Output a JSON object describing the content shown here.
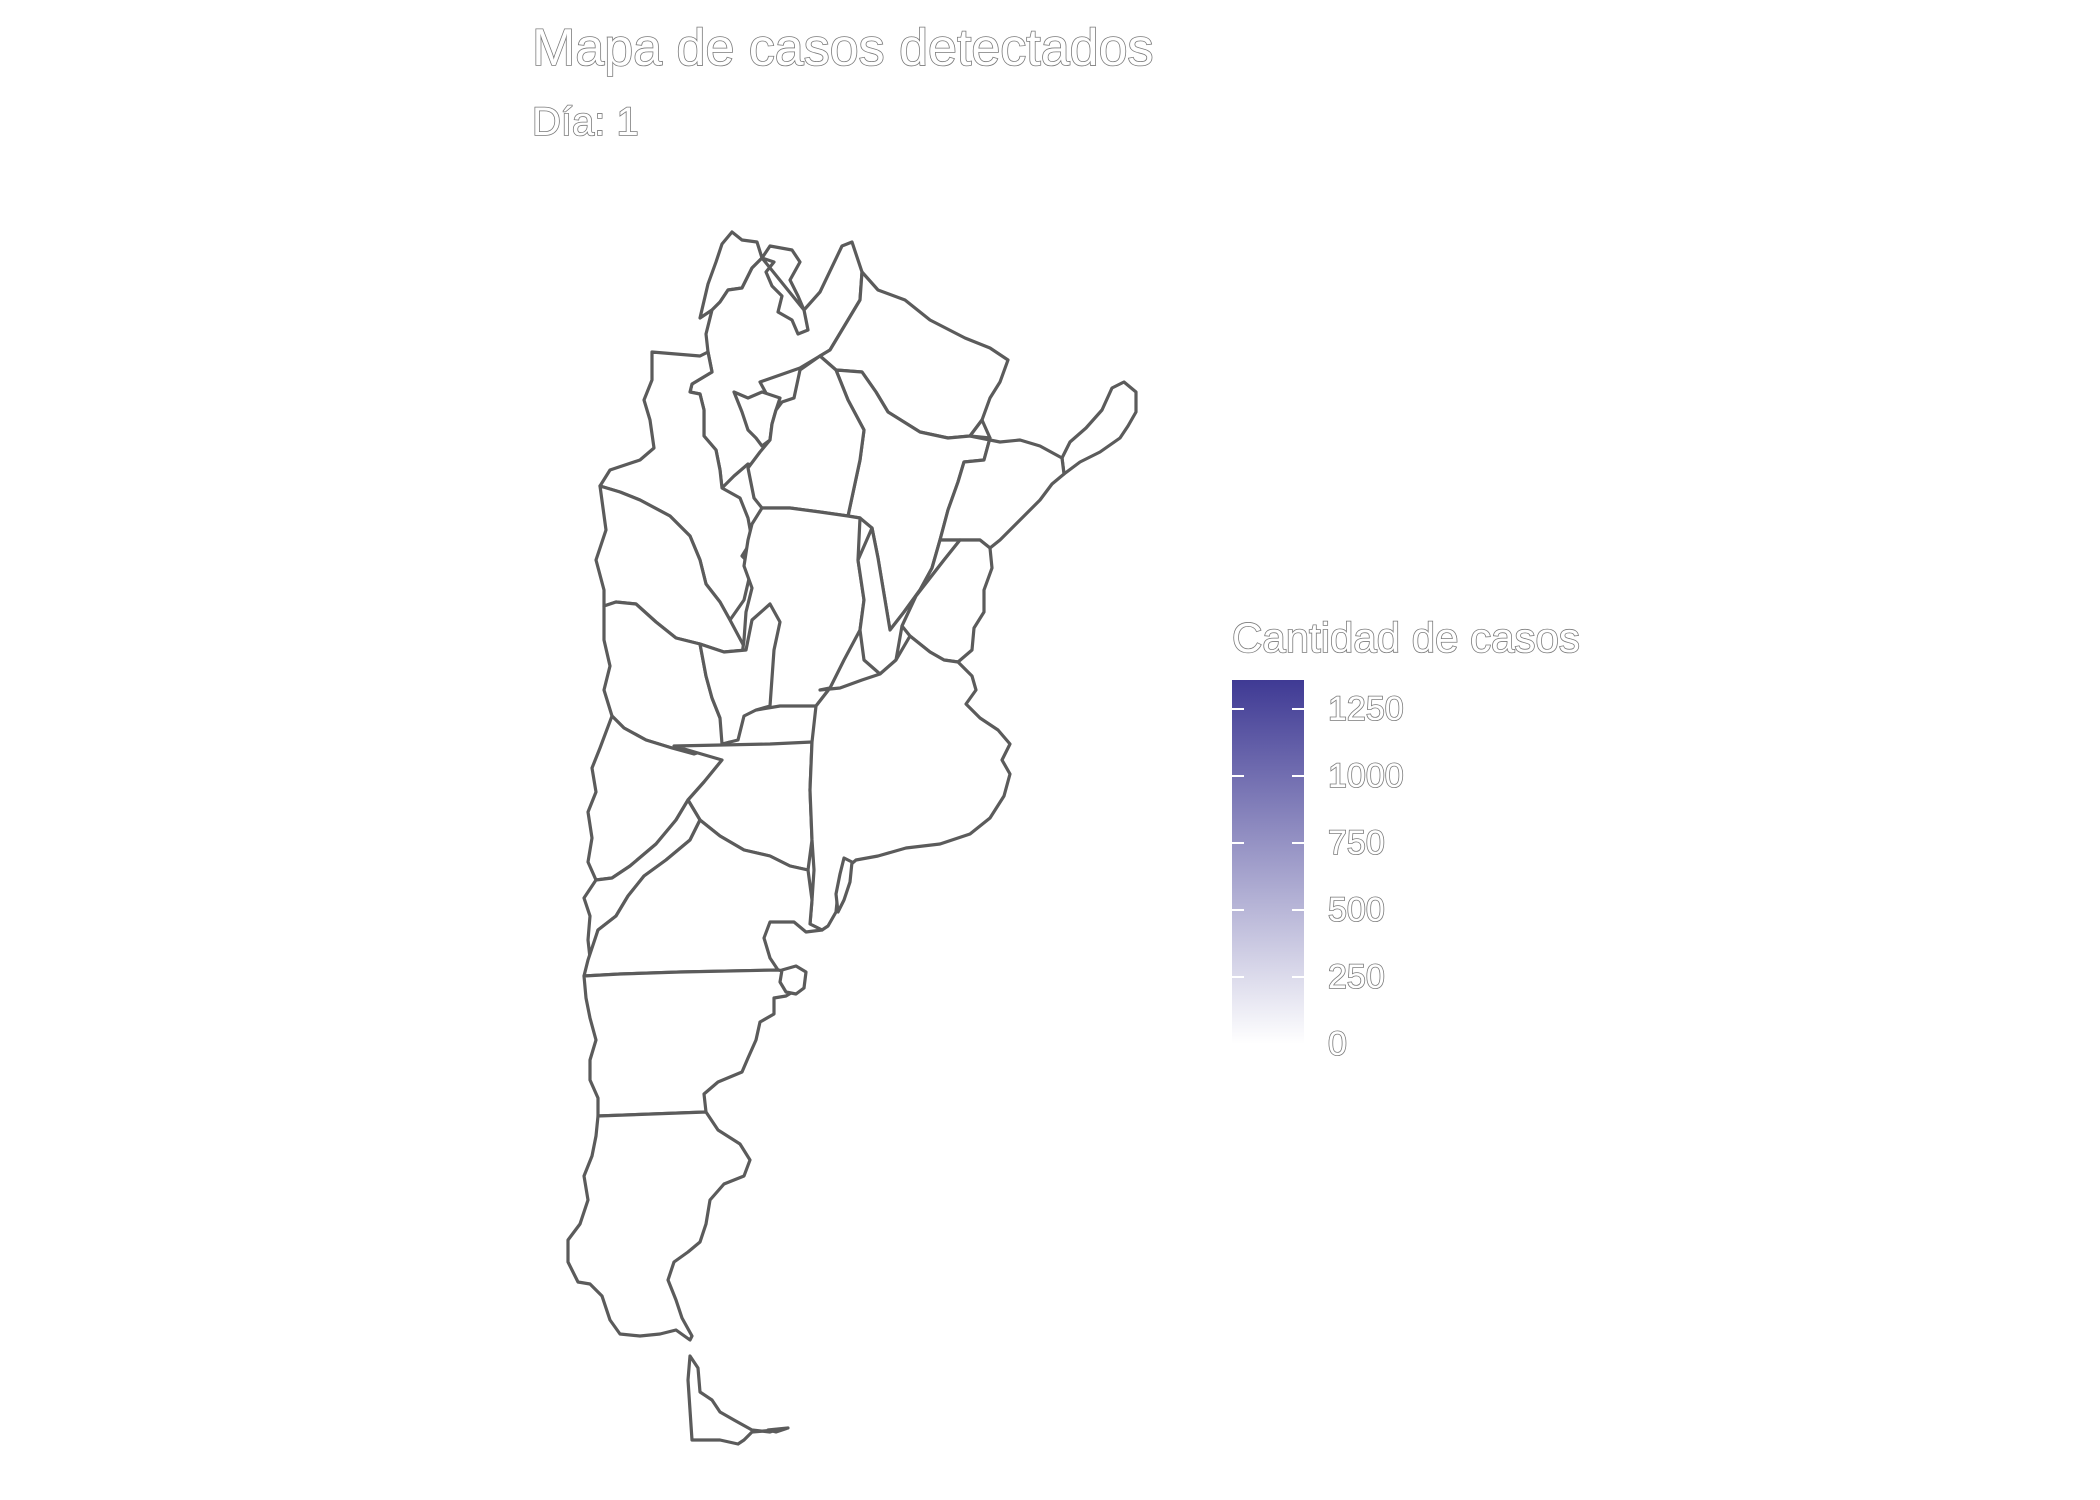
{
  "title": "Mapa de casos detectados",
  "subtitle": "Día: 1",
  "colors": {
    "province_fill": "#ffffff",
    "province_border": "#5b5b5b",
    "scale_low": "#ffffff",
    "scale_high": "#3f3a94"
  },
  "legend": {
    "title": "Cantidad de casos",
    "min": 0,
    "max": 1360,
    "ticks": [
      {
        "value": 1250,
        "label": "1250"
      },
      {
        "value": 1000,
        "label": "1000"
      },
      {
        "value": 750,
        "label": "750"
      },
      {
        "value": 500,
        "label": "500"
      },
      {
        "value": 250,
        "label": "250"
      },
      {
        "value": 0,
        "label": "0"
      }
    ]
  },
  "provinces": [
    {
      "id": "jujuy",
      "value": 0
    },
    {
      "id": "salta",
      "value": 0
    },
    {
      "id": "formosa",
      "value": 0
    },
    {
      "id": "misiones",
      "value": 0
    },
    {
      "id": "catamarca",
      "value": 0
    },
    {
      "id": "tucuman",
      "value": 0
    },
    {
      "id": "santiago-del-estero",
      "value": 0
    },
    {
      "id": "chaco",
      "value": 0
    },
    {
      "id": "corrientes",
      "value": 0
    },
    {
      "id": "la-rioja",
      "value": 0
    },
    {
      "id": "cordoba",
      "value": 0
    },
    {
      "id": "santa-fe",
      "value": 0
    },
    {
      "id": "entre-rios",
      "value": 0
    },
    {
      "id": "san-juan",
      "value": 0
    },
    {
      "id": "san-luis",
      "value": 0
    },
    {
      "id": "mendoza",
      "value": 0
    },
    {
      "id": "la-pampa",
      "value": 0
    },
    {
      "id": "buenos-aires",
      "value": 0
    },
    {
      "id": "neuquen",
      "value": 0
    },
    {
      "id": "rio-negro",
      "value": 0
    },
    {
      "id": "chubut",
      "value": 0
    },
    {
      "id": "santa-cruz",
      "value": 0
    },
    {
      "id": "tierra-del-fuego",
      "value": 0
    }
  ]
}
